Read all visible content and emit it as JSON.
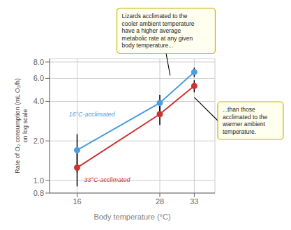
{
  "chart_data": {
    "type": "line",
    "x": [
      16,
      28,
      33
    ],
    "xlabel": "Body temperature (°C)",
    "ylabel": "Rate of O₂ consumption (mL O₂/h)\non log scale",
    "xlim": [
      12,
      36
    ],
    "xticks": [
      16,
      28,
      33
    ],
    "ylim": [
      0.8,
      8.5
    ],
    "yticks": [
      0.8,
      {
        "value": 1.0,
        "label": "1.0"
      },
      {
        "value": 2.0,
        "label": "2.0"
      },
      {
        "value": 4.0,
        "label": "4.0"
      },
      {
        "value": 6.0,
        "label": "6.0"
      },
      {
        "value": 8.0,
        "label": "8.0"
      }
    ],
    "log": "y",
    "grid": true,
    "series": [
      {
        "name": "16°C-acclimated",
        "color": "#4d9de0",
        "marker": "circle",
        "values": [
          1.7,
          3.9,
          6.7
        ],
        "yerr_low": [
          0.55,
          0.6,
          0.55
        ],
        "yerr_high": [
          0.55,
          0.6,
          0.55
        ]
      },
      {
        "name": "33°C-acclimated",
        "color": "#cc3333",
        "marker": "circle",
        "values": [
          1.25,
          3.2,
          5.25
        ],
        "yerr_low": [
          0.35,
          0.55,
          0.55
        ],
        "yerr_high": [
          0.35,
          0.55,
          0.55
        ]
      }
    ],
    "annotations": [
      {
        "text": "Lizards acclimated to the\ncooler ambient temperature\nhave a higher average\nmetabolic rate at any given\nbody temperature...",
        "x": 29.5,
        "y": 6.3
      },
      {
        "text": "...than those\nacclimated to the\nwarmer ambient\ntemperature.",
        "x": 33,
        "y": 4.3
      }
    ]
  }
}
